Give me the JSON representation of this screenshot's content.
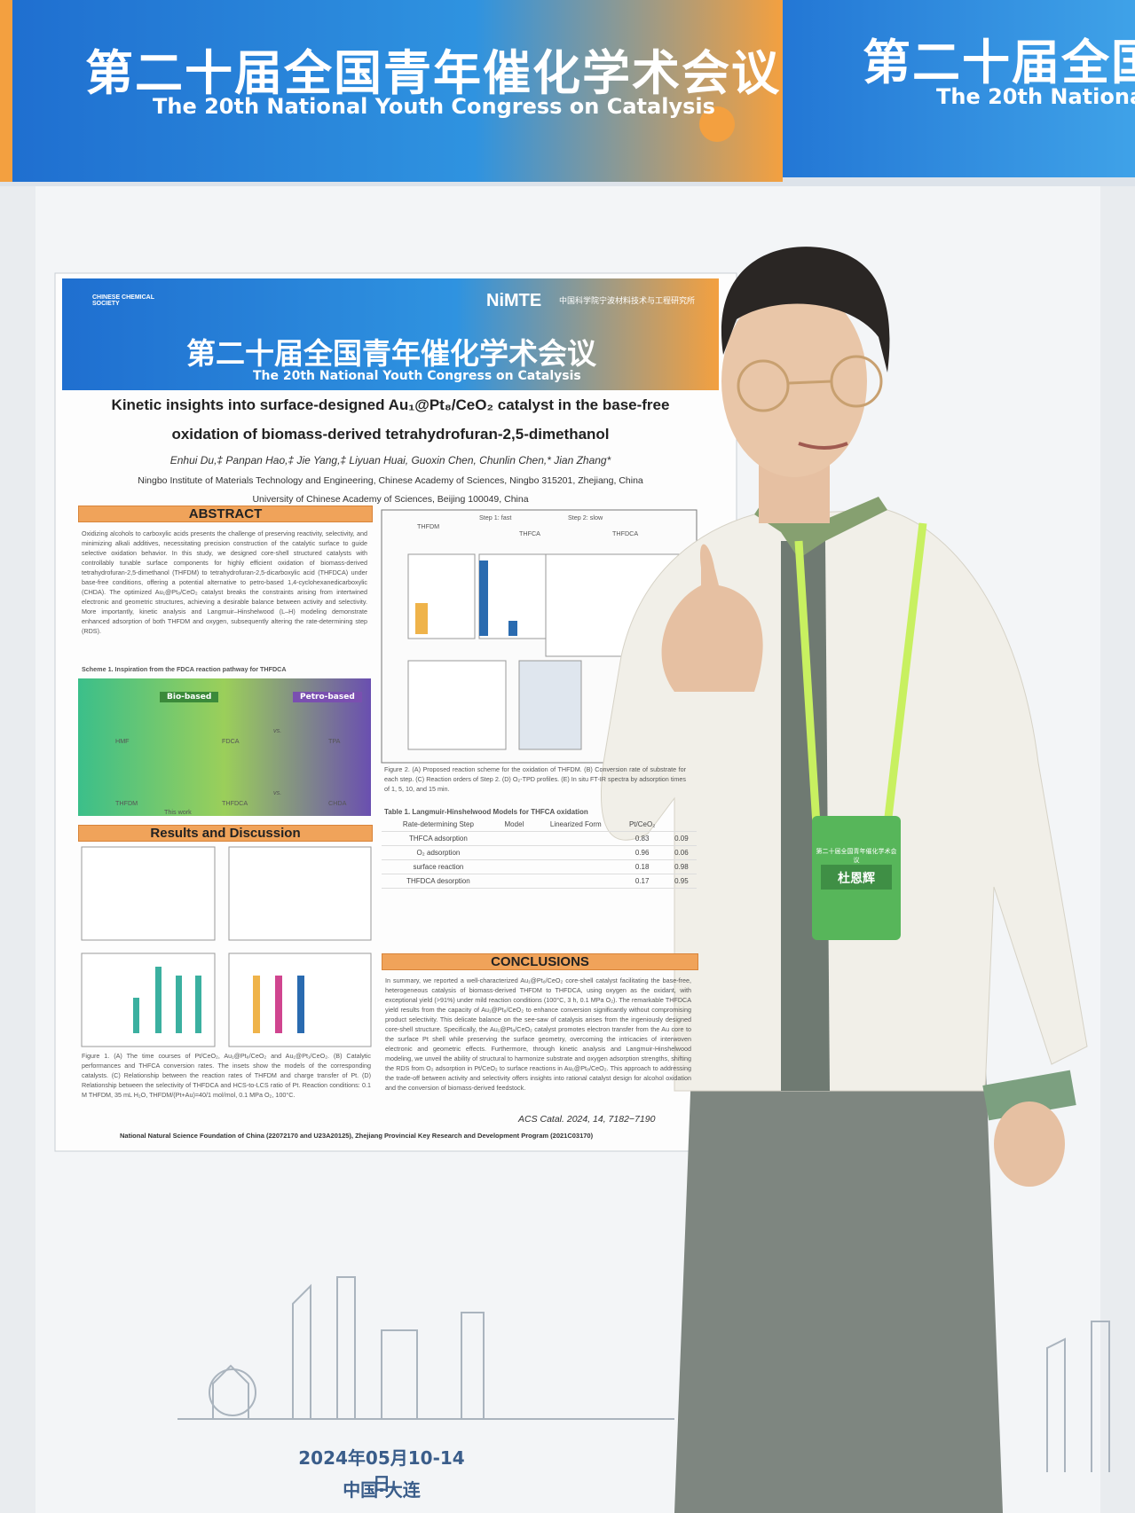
{
  "banner": {
    "title_cn": "第二十届全国青年催化学术会议",
    "title_en": "The 20th National Youth Congress on Catalysis"
  },
  "poster": {
    "header": {
      "org": "NiMTE",
      "org_cn": "中国科学院宁波材料技术与工程研究所",
      "society": "CHINESE CHEMICAL SOCIETY",
      "title_cn": "第二十届全国青年催化学术会议",
      "title_en": "The 20th National Youth Congress on Catalysis"
    },
    "title": [
      "Kinetic insights into surface-designed Au₁@Pt₈/CeO₂ catalyst in the base-free",
      "oxidation of biomass-derived tetrahydrofuran-2,5-dimethanol"
    ],
    "authors": "Enhui Du,‡ Panpan Hao,‡ Jie Yang,‡ Liyuan Huai, Guoxin Chen, Chunlin Chen,* Jian Zhang*",
    "affiliations": [
      "Ningbo Institute of Materials Technology and Engineering, Chinese Academy of Sciences, Ningbo 315201, Zhejiang, China",
      "University of Chinese Academy of Sciences, Beijing 100049, China"
    ],
    "abstract": {
      "heading": "ABSTRACT",
      "text": "Oxidizing alcohols to carboxylic acids presents the challenge of preserving reactivity, selectivity, and minimizing alkali additives, necessitating precision construction of the catalytic surface to guide selective oxidation behavior. In this study, we designed core-shell structured catalysts with controllably tunable surface components for highly efficient oxidation of biomass-derived tetrahydrofuran-2,5-dimethanol (THFDM) to tetrahydrofuran-2,5-dicarboxylic acid (THFDCA) under base-free conditions, offering a potential alternative to petro-based 1,4-cyclohexanedicarboxylic (CHDA). The optimized Au₁@Pt₈/CeO₂ catalyst breaks the constraints arising from intertwined electronic and geometric structures, achieving a desirable balance between activity and selectivity. More importantly, kinetic analysis and Langmuir–Hinshelwood (L–H) modeling demonstrate enhanced adsorption of both THFDM and oxygen, subsequently altering the rate-determining step (RDS)."
    },
    "scheme": {
      "caption": "Scheme 1. Inspiration from the FDCA reaction pathway for THFDCA",
      "bio": "Bio-based",
      "petro": "Petro-based",
      "row1": [
        "HMF",
        "FDCA",
        "vs.",
        "TPA"
      ],
      "row2": [
        "THFDM",
        "THFDCA",
        "vs.",
        "CHDA"
      ],
      "this_work": "This work"
    },
    "results": {
      "heading": "Results and Discussion",
      "caption": "Figure 1. (A) The time courses of Pt/CeO₂, Au₁@Pt₈/CeO₂ and Au₁@Pt₁/CeO₂. (B) Catalytic performances and THFCA conversion rates. The insets show the models of the corresponding catalysts. (C) Relationship between the reaction rates of THFDM and charge transfer of Pt. (D) Relationship between the selectivity of THFDCA and HCS-to-LCS ratio of Pt. Reaction conditions: 0.1 M THFDM, 35 mL H₂O, THFDM/(Pt+Au)=40/1 mol/mol, 0.1 MPa O₂, 100°C."
    },
    "figure2": {
      "steps": [
        "THFDM",
        "THFCA",
        "THFDCA"
      ],
      "step1": "Step 1: fast",
      "step2": "Step 2: slow",
      "caption": "Figure 2. (A) Proposed reaction scheme for the oxidation of THFDM. (B) Conversion rate of substrate for each step. (C) Reaction orders of Step 2. (D) O₂-TPD profiles. (E) In situ FT-IR spectra by adsorption times of 1, 5, 10, and 15 min."
    },
    "table": {
      "caption": "Table 1. Langmuir-Hinshelwood Models for THFCA oxidation",
      "header": [
        "Rate-determining Step",
        "Model",
        "Linearized Form",
        "Pt/CeO₂",
        ""
      ],
      "rows": [
        [
          "THFCA adsorption",
          "0.83",
          "0.09"
        ],
        [
          "O₂ adsorption",
          "0.96",
          "0.06"
        ],
        [
          "surface reaction",
          "0.18",
          "0.98"
        ],
        [
          "THFDCA desorption",
          "0.17",
          "0.95"
        ]
      ]
    },
    "conclusions": {
      "heading": "CONCLUSIONS",
      "text": "In summary, we reported a well-characterized Au₁@Pt₈/CeO₂ core-shell catalyst facilitating the base-free, heterogeneous catalysis of biomass-derived THFDM to THFDCA, using oxygen as the oxidant, with exceptional yield (>91%) under mild reaction conditions (100°C, 3 h, 0.1 MPa O₂). The remarkable THFDCA yield results from the capacity of Au₁@Pt₈/CeO₂ to enhance conversion significantly without compromising product selectivity. This delicate balance on the see-saw of catalysis arises from the ingeniously designed core-shell structure. Specifically, the Au₁@Pt₈/CeO₂ catalyst promotes electron transfer from the Au core to the surface Pt shell while preserving the surface geometry, overcoming the intricacies of interwoven electronic and geometric effects. Furthermore, through kinetic analysis and Langmuir-Hinshelwood modeling, we unveil the ability of structural to harmonize substrate and oxygen adsorption strengths, shifting the RDS from O₂ adsorption in Pt/CeO₂ to surface reactions in Au₁@Pt₈/CeO₂. This approach to addressing the trade-off between activity and selectivity offers insights into rational catalyst design for alcohol oxidation and the conversion of biomass-derived feedstock."
    },
    "funding": "National Natural Science Foundation of China (22072170 and U23A20125), Zhejiang Provincial Key Research and Development Program (2021C03170)",
    "citation": "ACS Catal. 2024, 14, 7182−7190"
  },
  "badge": {
    "event": "第二十届全国青年催化学术会议",
    "name": "杜恩辉"
  },
  "footer": {
    "date": "2024年05月10-14日",
    "place": "中国·大连"
  }
}
